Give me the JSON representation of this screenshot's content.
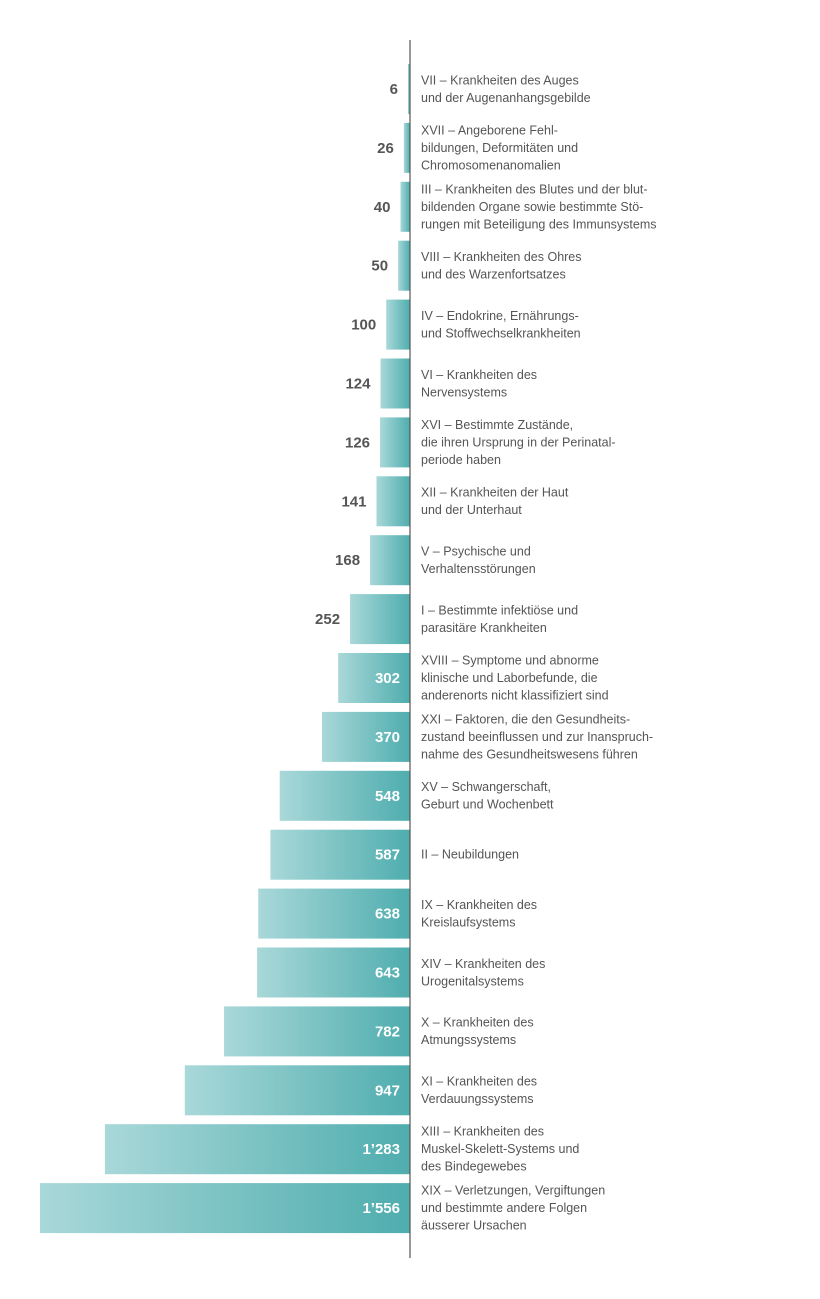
{
  "chart_data": {
    "type": "bar",
    "orientation": "horizontal",
    "title": "",
    "xlabel": "",
    "ylabel": "",
    "xlim": [
      0,
      1556
    ],
    "grid": false,
    "legend": "none",
    "colors": {
      "bar_light": "#a9d8d9",
      "bar_dark": "#4fadae",
      "axis": "#555555",
      "value_dark": "#555555",
      "value_light": "#ffffff"
    },
    "categories": [
      [
        "VII – Krankheiten des Auges",
        "und der Augenanhangsgebilde"
      ],
      [
        "XVII – Angeborene Fehl-",
        "bildungen, Deformitäten und",
        "Chromosomenanomalien"
      ],
      [
        "III – Krankheiten des Blutes und der blut-",
        "bildenden Organe sowie bestimmte Stö-",
        "rungen mit Beteiligung des Immunsystems"
      ],
      [
        "VIII – Krankheiten des Ohres",
        "und des Warzenfortsatzes"
      ],
      [
        "IV – Endokrine, Ernährungs-",
        "und Stoffwechselkrankheiten"
      ],
      [
        "VI – Krankheiten des",
        "Nervensystems"
      ],
      [
        "XVI – Bestimmte Zustände,",
        "die ihren Ursprung in der Perinatal-",
        "periode haben"
      ],
      [
        "XII – Krankheiten der Haut",
        "und der Unterhaut"
      ],
      [
        "V – Psychische und",
        "Verhaltensstörungen"
      ],
      [
        "I – Bestimmte infektiöse und",
        "parasitäre Krankheiten"
      ],
      [
        "XVIII – Symptome und abnorme",
        "klinische und Laborbefunde, die",
        "anderenorts nicht klassifiziert sind"
      ],
      [
        "XXI – Faktoren, die den Gesundheits-",
        "zustand beeinflussen und zur Inanspruch-",
        "nahme des Gesundheitswesens führen"
      ],
      [
        "XV – Schwangerschaft,",
        "Geburt und Wochenbett"
      ],
      [
        "II – Neubildungen"
      ],
      [
        "IX – Krankheiten des",
        "Kreislaufsystems"
      ],
      [
        "XIV – Krankheiten des",
        "Urogenitalsystems"
      ],
      [
        "X – Krankheiten des",
        "Atmungssystems"
      ],
      [
        "XI – Krankheiten des",
        "Verdauungssystems"
      ],
      [
        "XIII – Krankheiten des",
        "Muskel-Skelett-Systems und",
        "des Bindegewebes"
      ],
      [
        "XIX – Verletzungen, Vergiftungen",
        "und bestimmte andere Folgen",
        "äusserer Ursachen"
      ]
    ],
    "values": [
      6,
      26,
      40,
      50,
      100,
      124,
      126,
      141,
      168,
      252,
      302,
      370,
      548,
      587,
      638,
      643,
      782,
      947,
      1283,
      1556
    ],
    "value_labels": [
      "6",
      "26",
      "40",
      "50",
      "100",
      "124",
      "126",
      "141",
      "168",
      "252",
      "302",
      "370",
      "548",
      "587",
      "638",
      "643",
      "782",
      "947",
      "1’283",
      "1’556"
    ]
  }
}
